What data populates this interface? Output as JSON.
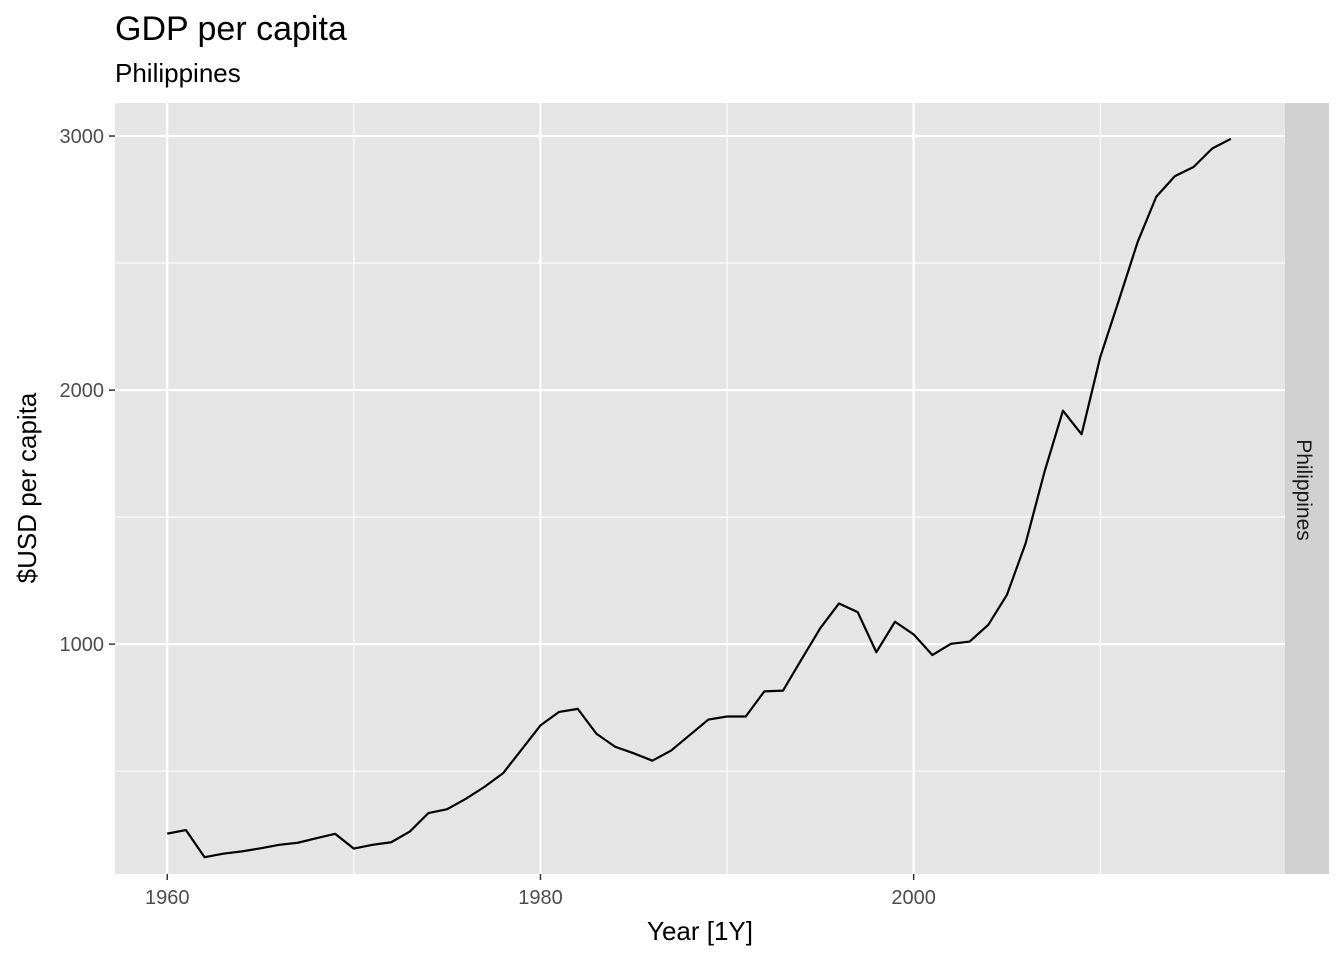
{
  "chart_data": {
    "type": "line",
    "title": "GDP per capita",
    "subtitle": "Philippines",
    "xlabel": "Year [1Y]",
    "ylabel": "$USD per capita",
    "facet_label": "Philippines",
    "xlim": [
      1957.2,
      2019.9
    ],
    "ylim": [
      95,
      3130
    ],
    "x_ticks": [
      1960,
      1980,
      2000
    ],
    "x_tick_labels": [
      "1960",
      "1980",
      "2000"
    ],
    "x_minor": [
      1970,
      1990,
      2010
    ],
    "y_ticks": [
      1000,
      2000,
      3000
    ],
    "y_tick_labels": [
      "1000",
      "2000",
      "3000"
    ],
    "y_minor": [
      500,
      1500,
      2500
    ],
    "grid": true,
    "colors": {
      "panel": "#e5e5e5",
      "grid": "#ffffff",
      "strip": "#d0d0d0",
      "line": "#000000"
    },
    "series": [
      {
        "x": [
          1960,
          1961,
          1962,
          1963,
          1964,
          1965,
          1966,
          1967,
          1968,
          1969,
          1970,
          1971,
          1972,
          1973,
          1974,
          1975,
          1976,
          1977,
          1978,
          1979,
          1980,
          1981,
          1982,
          1983,
          1984,
          1985,
          1986,
          1987,
          1988,
          1989,
          1990,
          1991,
          1992,
          1993,
          1994,
          1995,
          1996,
          1997,
          1998,
          1999,
          2000,
          2001,
          2002,
          2003,
          2004,
          2005,
          2006,
          2007,
          2008,
          2009,
          2010,
          2011,
          2012,
          2013,
          2014,
          2015,
          2016,
          2017
        ],
        "values": [
          254,
          268,
          161,
          175,
          184,
          196,
          210,
          218,
          236,
          253,
          195,
          210,
          220,
          262,
          335,
          350,
          391,
          438,
          492,
          586,
          680,
          733,
          745,
          647,
          596,
          570,
          541,
          581,
          642,
          703,
          715,
          715,
          814,
          817,
          941,
          1063,
          1160,
          1126,
          968,
          1088,
          1038,
          957,
          1001,
          1010,
          1076,
          1194,
          1397,
          1675,
          1919,
          1826,
          2130,
          2354,
          2582,
          2761,
          2842,
          2878,
          2951,
          2989
        ]
      }
    ]
  }
}
